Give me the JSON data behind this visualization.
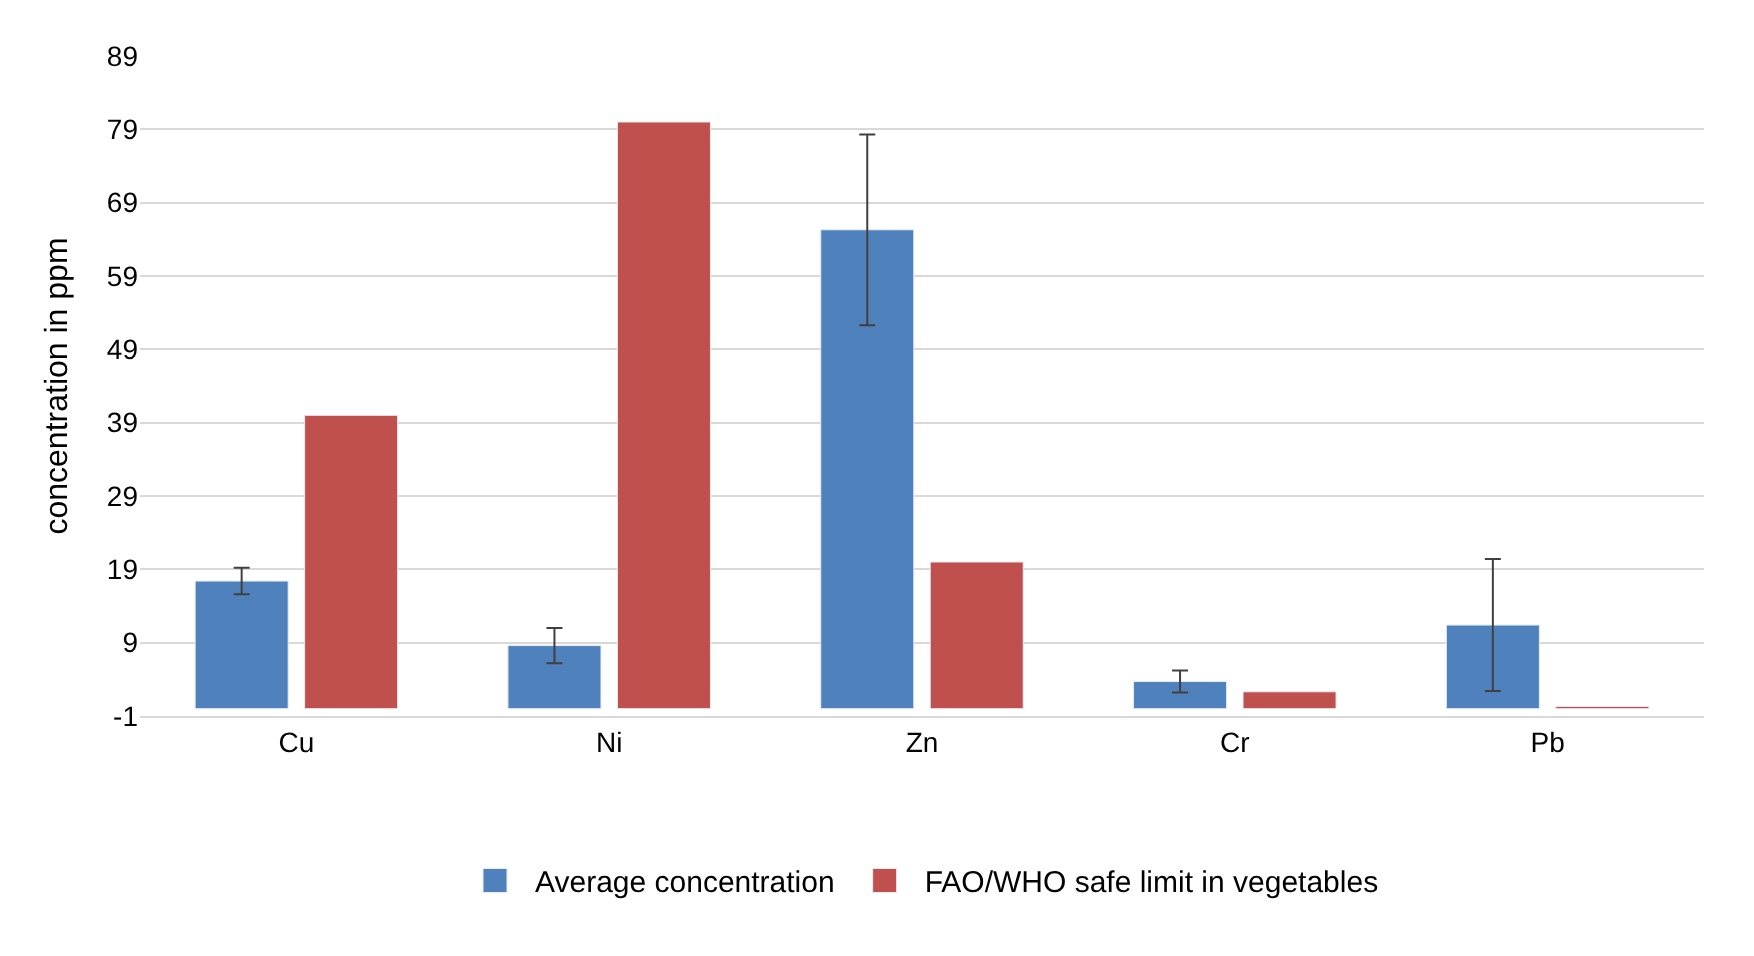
{
  "chart_data": {
    "type": "bar",
    "ylabel": "concentration in ppm",
    "categories": [
      "Cu",
      "Ni",
      "Zn",
      "Cr",
      "Pb"
    ],
    "series": [
      {
        "name": "Average concentration",
        "color": "#4f81bd",
        "values": [
          17.4,
          8.6,
          65.3,
          3.7,
          11.4
        ],
        "errors": [
          1.8,
          2.4,
          13,
          1.5,
          9
        ]
      },
      {
        "name": "FAO/WHO safe limit in vegetables",
        "color": "#c0504d",
        "values": [
          40,
          80,
          20,
          2.3,
          0.3
        ]
      }
    ],
    "ylim": [
      -1,
      89
    ],
    "yticks": [
      -1,
      9,
      19,
      29,
      39,
      49,
      59,
      69,
      79,
      89
    ],
    "grid": "y",
    "legend": "bottom"
  }
}
